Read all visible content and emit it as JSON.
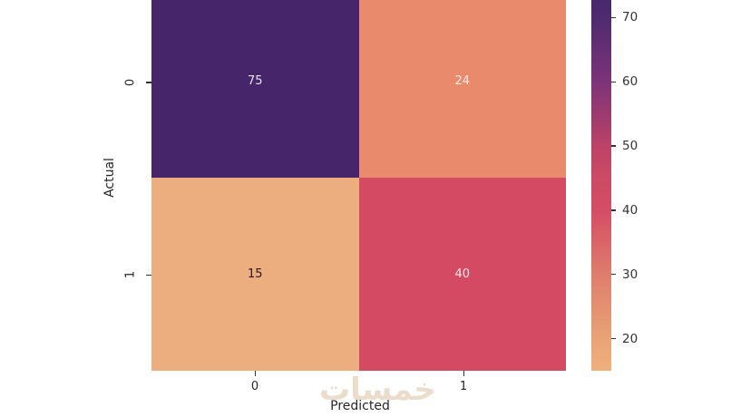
{
  "watermark": {
    "text": "خمسات",
    "color": "#ecdccb"
  },
  "chart_data": {
    "type": "heatmap",
    "title": "",
    "xlabel": "Predicted",
    "ylabel": "Actual",
    "x_tick_labels": [
      "0",
      "1"
    ],
    "y_tick_labels": [
      "0",
      "1"
    ],
    "matrix": [
      [
        75,
        24
      ],
      [
        15,
        40
      ]
    ],
    "cell_colors": [
      [
        "#46256a",
        "#e98a6d"
      ],
      [
        "#ecae7e",
        "#d44a63"
      ]
    ],
    "cell_text_colors": [
      [
        "#e8e3e9",
        "#f6ebe6"
      ],
      [
        "#28191f",
        "#f6e7e6"
      ]
    ],
    "colorbar": {
      "vmin": 15,
      "vmax": 75,
      "ticks": [
        70,
        60,
        50,
        40,
        30,
        20
      ],
      "gradient_stops": [
        {
          "pos": 0,
          "color": "#452569"
        },
        {
          "pos": 8.3,
          "color": "#4f2a6f"
        },
        {
          "pos": 25,
          "color": "#7c3378"
        },
        {
          "pos": 41.7,
          "color": "#bc4268"
        },
        {
          "pos": 50,
          "color": "#cc4a65"
        },
        {
          "pos": 58.3,
          "color": "#d44d64"
        },
        {
          "pos": 75,
          "color": "#de7d6d"
        },
        {
          "pos": 91.7,
          "color": "#e9a376"
        },
        {
          "pos": 100,
          "color": "#efb07c"
        }
      ]
    },
    "legend_position": "right-colorbar",
    "grid": false
  }
}
